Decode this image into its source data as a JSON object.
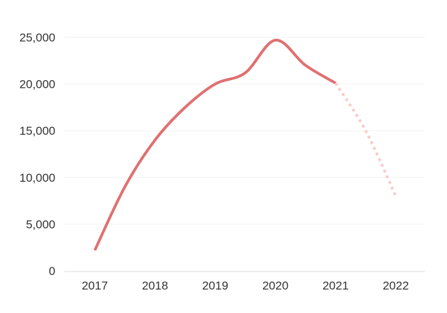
{
  "chart_data": {
    "type": "line",
    "x": [
      "2017",
      "2018",
      "2019",
      "2020",
      "2021",
      "2022"
    ],
    "ylim": [
      0,
      25000
    ],
    "yticks": [
      0,
      5000,
      10000,
      15000,
      20000,
      25000
    ],
    "ytick_labels": [
      "0",
      "5,000",
      "10,000",
      "15,000",
      "20,000",
      "25,000"
    ],
    "grid": true,
    "legend": "none",
    "title": "",
    "xlabel": "",
    "ylabel": "",
    "series": [
      {
        "points": [
          {
            "x": 2017.0,
            "y": 2200
          },
          {
            "x": 2017.5,
            "y": 9000
          },
          {
            "x": 2018.0,
            "y": 14000
          },
          {
            "x": 2018.5,
            "y": 17500
          },
          {
            "x": 2019.0,
            "y": 20000
          },
          {
            "x": 2019.5,
            "y": 21200
          },
          {
            "x": 2020.0,
            "y": 24700
          },
          {
            "x": 2020.5,
            "y": 22000
          },
          {
            "x": 2021.0,
            "y": 20100
          }
        ],
        "style": "solid",
        "color": "#e07070"
      },
      {
        "points": [
          {
            "x": 2021.0,
            "y": 20100
          },
          {
            "x": 2021.5,
            "y": 15000
          },
          {
            "x": 2022.0,
            "y": 8000
          }
        ],
        "style": "dotted",
        "color": "#f7cccc"
      }
    ]
  }
}
